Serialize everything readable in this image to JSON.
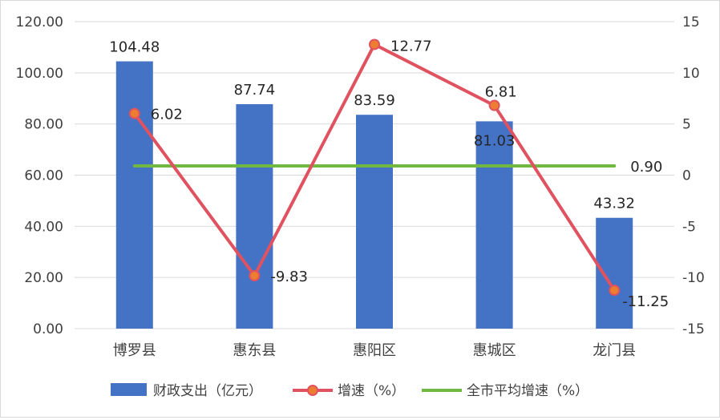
{
  "chart_data": {
    "type": "bar+line",
    "categories": [
      "博罗县",
      "惠东县",
      "惠阳区",
      "惠城区",
      "龙门县"
    ],
    "series": [
      {
        "name": "财政支出（亿元）",
        "type": "bar",
        "axis": "left",
        "values": [
          104.48,
          87.74,
          83.59,
          81.03,
          43.32
        ],
        "labels": [
          "104.48",
          "87.74",
          "83.59",
          "81.03",
          "43.32"
        ],
        "color": "#4472c4"
      },
      {
        "name": "增速（%）",
        "type": "line",
        "axis": "right",
        "values": [
          6.02,
          -9.83,
          12.77,
          6.81,
          -11.25
        ],
        "labels": [
          "6.02",
          "-9.83",
          "12.77",
          "6.81",
          "-11.25"
        ],
        "color": "#e05260",
        "marker_fill": "#ed7d31"
      },
      {
        "name": "全市平均增速（%）",
        "type": "line",
        "axis": "right",
        "values": [
          0.9,
          0.9,
          0.9,
          0.9,
          0.9
        ],
        "label": "0.90",
        "color": "#70b83f"
      }
    ],
    "y_left": {
      "min": 0,
      "max": 120,
      "ticks": [
        "0.00",
        "20.00",
        "40.00",
        "60.00",
        "80.00",
        "100.00",
        "120.00"
      ]
    },
    "y_right": {
      "min": -15,
      "max": 15,
      "ticks": [
        "-15",
        "-10",
        "-5",
        "0",
        "5",
        "10",
        "15"
      ]
    },
    "grid": true,
    "legend_position": "bottom"
  }
}
